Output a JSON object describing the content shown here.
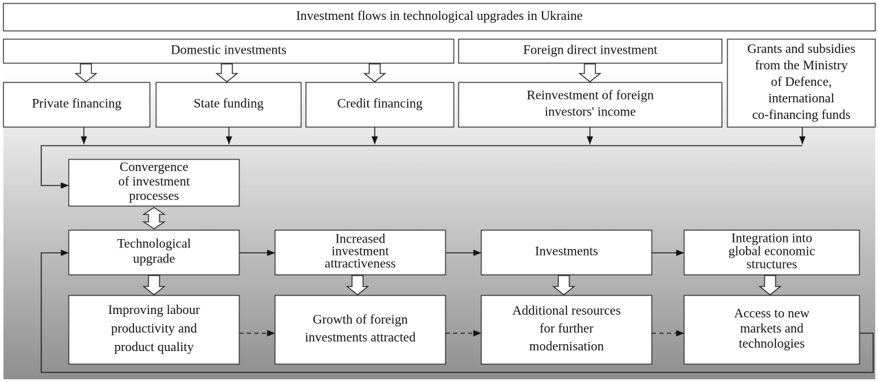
{
  "nodes": [
    {
      "lines": [
        "Investment flows in technological upgrades in Ukraine"
      ]
    },
    {
      "lines": [
        "Domestic investments"
      ]
    },
    {
      "lines": [
        "Foreign direct investment"
      ]
    },
    {
      "lines": [
        "Grants and subsidies",
        "from the Ministry",
        "of Defence,",
        "international",
        "co-financing funds"
      ]
    },
    {
      "lines": [
        "Private financing"
      ]
    },
    {
      "lines": [
        "State funding"
      ]
    },
    {
      "lines": [
        "Credit financing"
      ]
    },
    {
      "lines": [
        "Reinvestment of foreign",
        "investors' income"
      ]
    },
    {
      "lines": [
        "Convergence",
        "of investment",
        "processes"
      ]
    },
    {
      "lines": [
        "Technological",
        "upgrade"
      ]
    },
    {
      "lines": [
        "Increased",
        "investment",
        "attractiveness"
      ]
    },
    {
      "lines": [
        "Investments"
      ]
    },
    {
      "lines": [
        "Integration into",
        "global economic",
        "structures"
      ]
    },
    {
      "lines": [
        "Improving labour",
        "productivity and",
        "product quality"
      ]
    },
    {
      "lines": [
        "Growth of foreign",
        "investments attracted"
      ]
    },
    {
      "lines": [
        "Additional resources",
        "for further",
        "modernisation"
      ]
    },
    {
      "lines": [
        "Access to new",
        "markets and",
        "technologies"
      ]
    }
  ]
}
